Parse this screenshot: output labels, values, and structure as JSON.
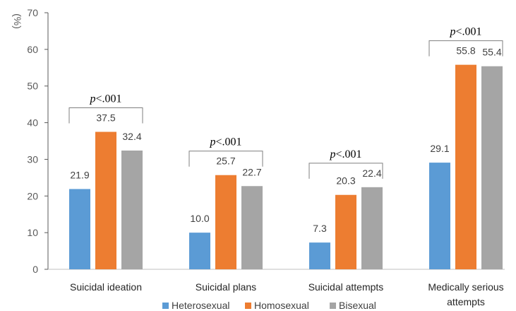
{
  "chart_data": {
    "type": "bar",
    "title": "",
    "xlabel": "",
    "ylabel": "(%)",
    "ylim": [
      0,
      70
    ],
    "yticks": [
      0,
      10,
      20,
      30,
      40,
      50,
      60,
      70
    ],
    "grid": false,
    "legend_position": "bottom",
    "categories": [
      "Suicidal ideation",
      "Suicidal plans",
      "Suicidal attempts",
      "Medically serious attempts"
    ],
    "series": [
      {
        "name": "Heterosexual",
        "color": "#5B9BD5",
        "values": [
          21.9,
          10.0,
          7.3,
          29.1
        ],
        "labels": [
          "21.9",
          "10.0",
          "7.3",
          "29.1"
        ]
      },
      {
        "name": "Homosexual",
        "color": "#ED7D31",
        "values": [
          37.5,
          25.7,
          20.3,
          55.8
        ],
        "labels": [
          "37.5",
          "25.7",
          "20.3",
          "55.8"
        ]
      },
      {
        "name": "Bisexual",
        "color": "#A5A5A5",
        "values": [
          32.4,
          22.7,
          22.4,
          55.4
        ],
        "labels": [
          "32.4",
          "22.7",
          "22.4",
          "55.4"
        ]
      }
    ],
    "annotations": [
      {
        "category": "Suicidal ideation",
        "p_symbol": "p",
        "p_text": "<.001"
      },
      {
        "category": "Suicidal plans",
        "p_symbol": "p",
        "p_text": "<.001"
      },
      {
        "category": "Suicidal attempts",
        "p_symbol": "p",
        "p_text": "<.001"
      },
      {
        "category": "Medically serious attempts",
        "p_symbol": "p",
        "p_text": "<.001"
      }
    ]
  }
}
